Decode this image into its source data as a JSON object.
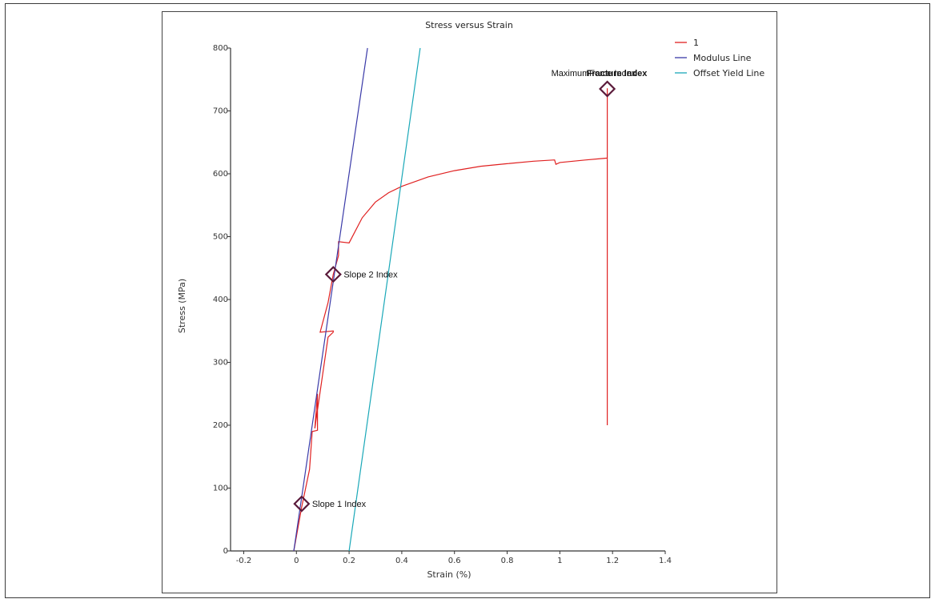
{
  "chart_data": {
    "type": "line",
    "title": "Stress versus Strain",
    "xlabel": "Strain (%)",
    "ylabel": "Stress (MPa)",
    "xlim": [
      -0.25,
      1.4
    ],
    "ylim": [
      0,
      800
    ],
    "xticks": [
      "-0.2",
      "0",
      "0.2",
      "0.4",
      "0.6",
      "0.8",
      "1",
      "1.2",
      "1.4"
    ],
    "xtick_values": [
      -0.2,
      0,
      0.2,
      0.4,
      0.6,
      0.8,
      1,
      1.2,
      1.4
    ],
    "yticks": [
      "0",
      "100",
      "200",
      "300",
      "400",
      "500",
      "600",
      "700",
      "800"
    ],
    "ytick_values": [
      0,
      100,
      200,
      300,
      400,
      500,
      600,
      700,
      800
    ],
    "grid": false,
    "legend_position": "top-right",
    "series": [
      {
        "name": "1",
        "color": "#e02020",
        "x": [
          -0.01,
          0.02,
          0.05,
          0.06,
          0.08,
          0.08,
          0.07,
          0.12,
          0.14,
          0.14,
          0.09,
          0.12,
          0.14,
          0.16,
          0.16,
          0.16,
          0.2,
          0.25,
          0.3,
          0.35,
          0.4,
          0.5,
          0.6,
          0.7,
          0.8,
          0.9,
          0.98,
          0.985,
          1.0,
          1.1,
          1.18,
          1.18,
          1.18
        ],
        "y": [
          0,
          70,
          130,
          190,
          192,
          250,
          195,
          340,
          348,
          350,
          348,
          395,
          440,
          470,
          490,
          492,
          490,
          530,
          555,
          570,
          580,
          595,
          605,
          612,
          616,
          620,
          622,
          615,
          618,
          622,
          625,
          736,
          200
        ]
      },
      {
        "name": "Modulus Line",
        "color": "#3a3aa8",
        "x": [
          -0.01,
          0.27
        ],
        "y": [
          0,
          800
        ]
      },
      {
        "name": "Offset Yield Line",
        "color": "#1aa8b8",
        "x": [
          0.2,
          0.47
        ],
        "y": [
          0,
          800
        ]
      }
    ],
    "markers": [
      {
        "label": "Slope 1 Index",
        "x": 0.02,
        "y": 75
      },
      {
        "label": "Slope 2 Index",
        "x": 0.14,
        "y": 440
      },
      {
        "label": "MaximumForce Index",
        "x": 1.18,
        "y": 735,
        "overlapping": "Fracture Index"
      }
    ]
  }
}
